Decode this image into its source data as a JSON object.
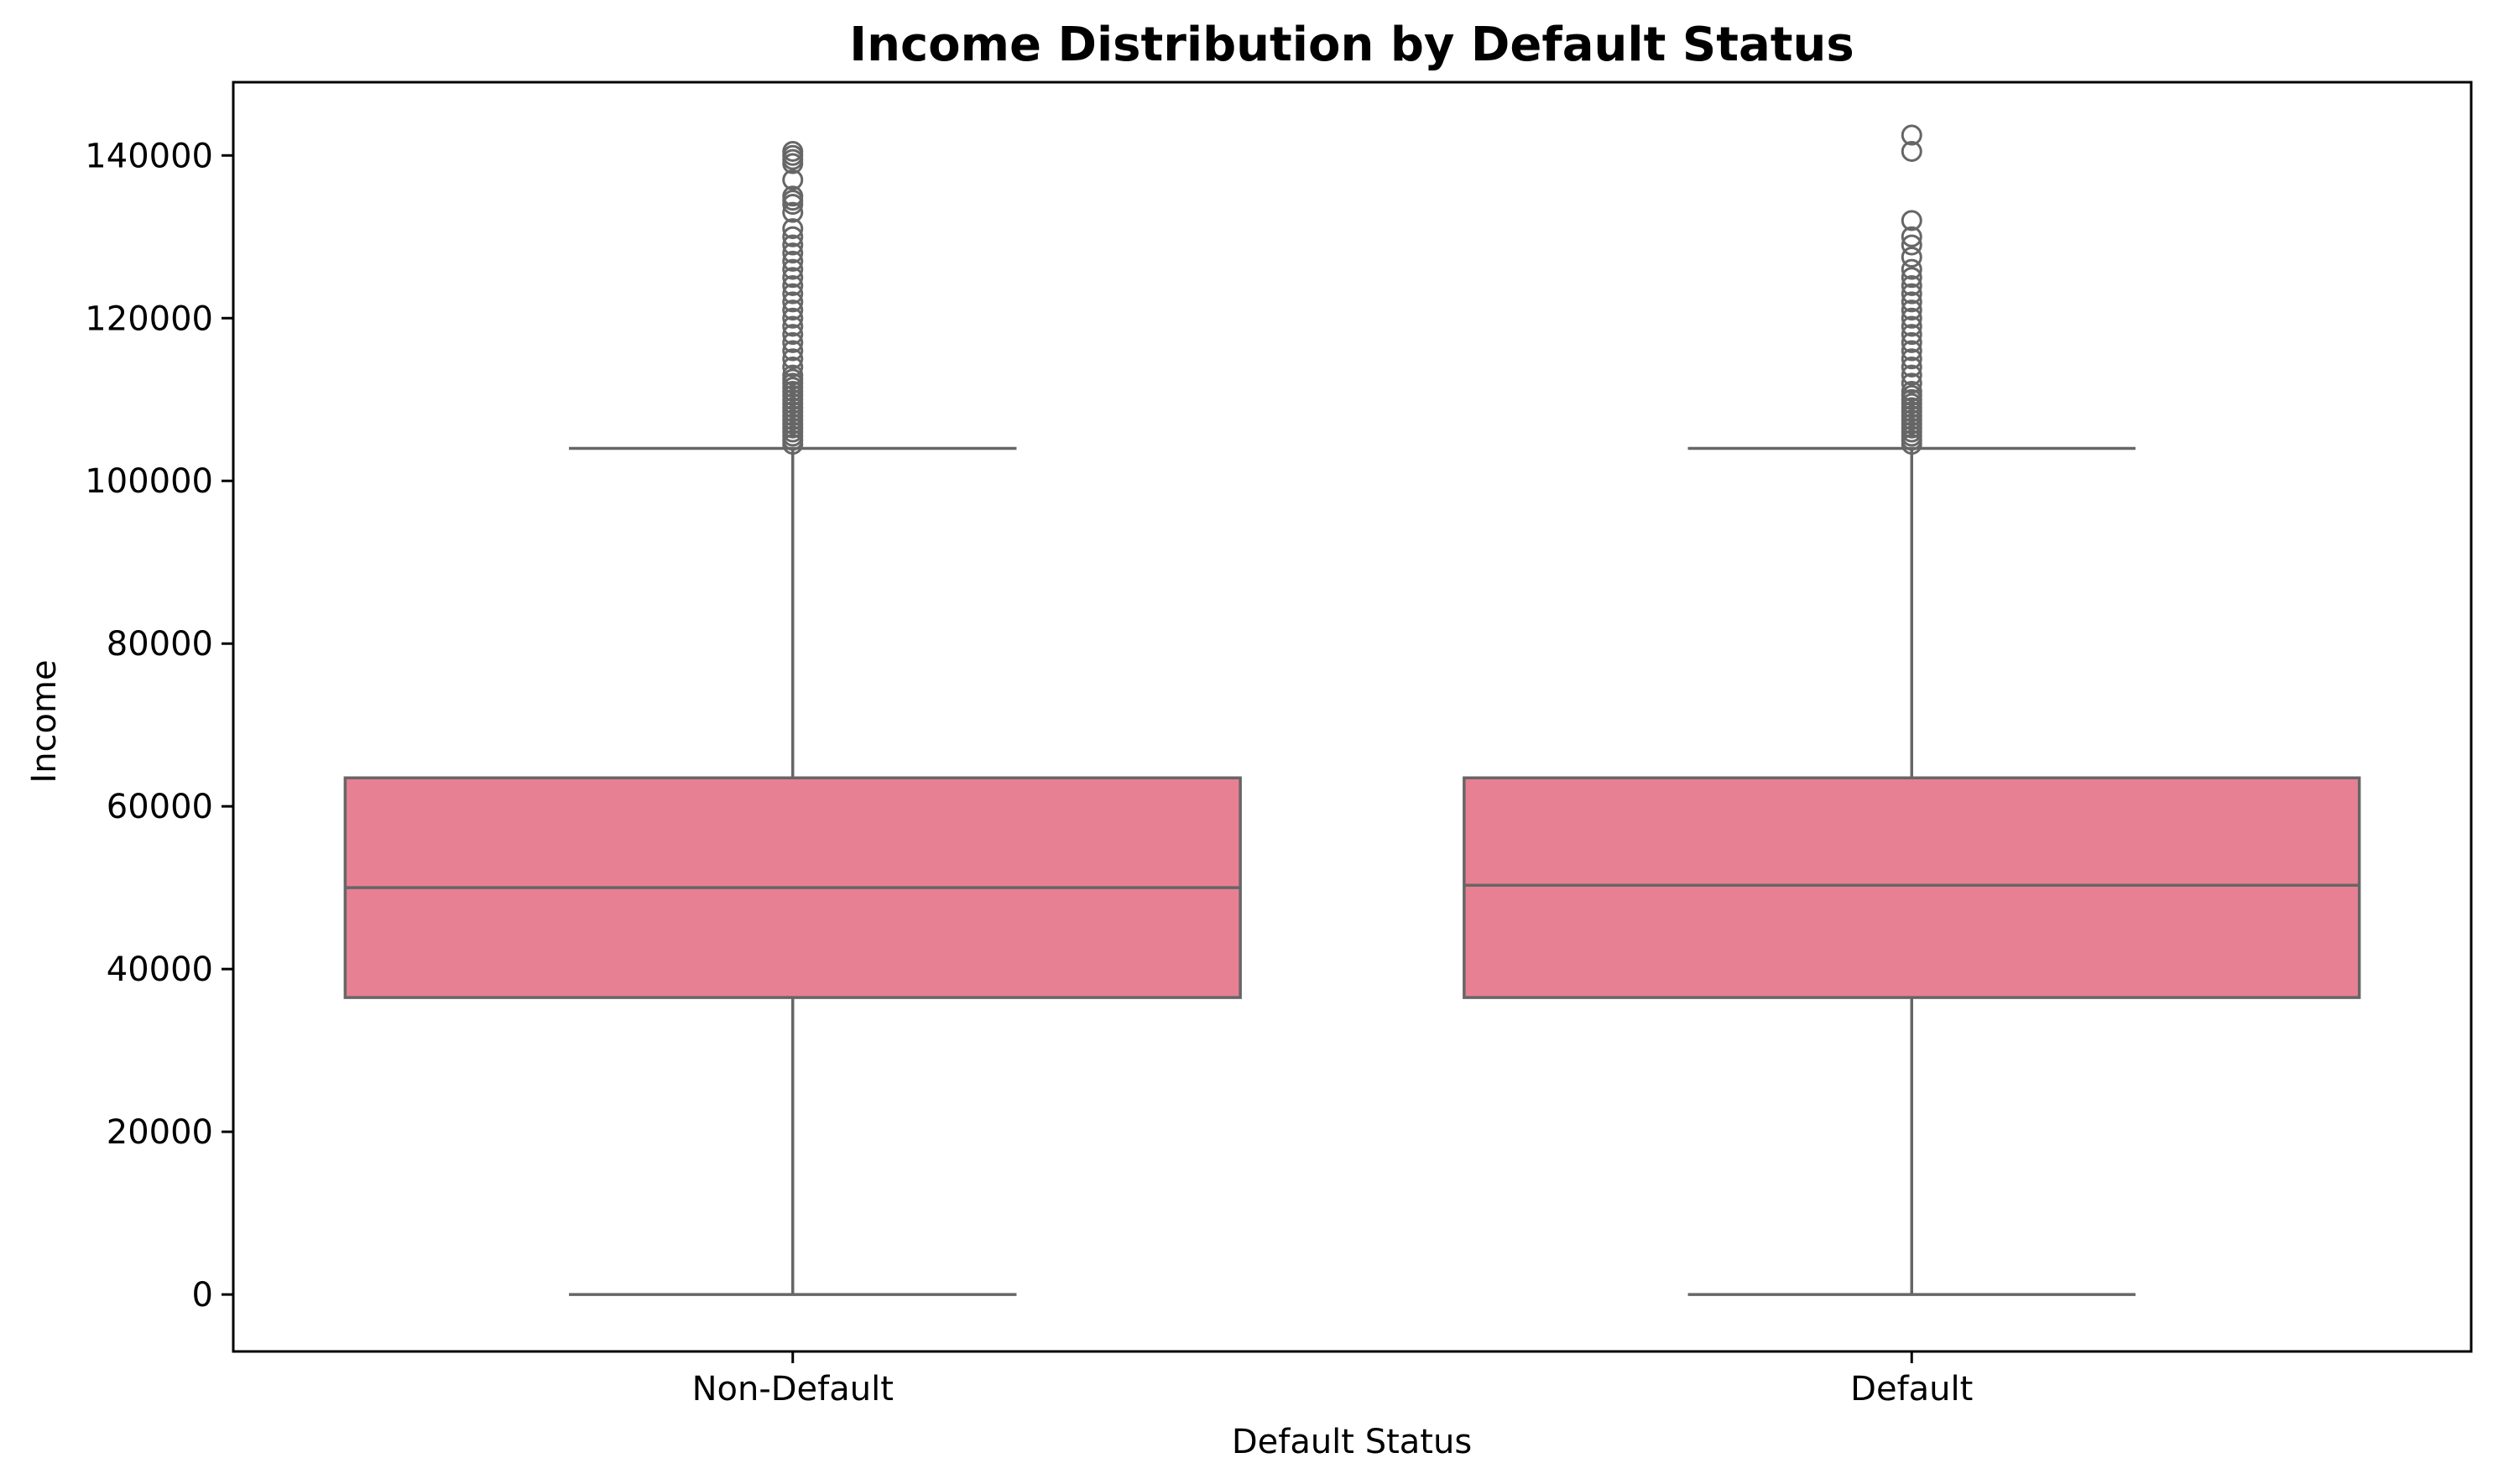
{
  "chart_data": {
    "type": "box",
    "title": "Income Distribution by Default Status",
    "xlabel": "Default Status",
    "ylabel": "Income",
    "ylim": [
      -7000,
      149000
    ],
    "yticks": [
      0,
      20000,
      40000,
      60000,
      80000,
      100000,
      120000,
      140000
    ],
    "ytick_labels": [
      "0",
      "20000",
      "40000",
      "60000",
      "80000",
      "100000",
      "120000",
      "140000"
    ],
    "categories": [
      "Non-Default",
      "Default"
    ],
    "grid": false,
    "box_color": "#e88093",
    "line_color": "#666666",
    "boxes": [
      {
        "category": "Non-Default",
        "whisker_low": 0,
        "q1": 36500,
        "median": 50000,
        "q3": 63500,
        "whisker_high": 104000,
        "outliers": [
          104500,
          105000,
          105500,
          106000,
          106500,
          107000,
          107500,
          108000,
          108500,
          109000,
          109500,
          110000,
          110500,
          111000,
          111500,
          112000,
          112500,
          113000,
          114000,
          115000,
          116000,
          117000,
          118000,
          119000,
          120000,
          121000,
          122000,
          123000,
          124000,
          125000,
          126000,
          127000,
          128000,
          129000,
          130000,
          131000,
          133000,
          134000,
          134500,
          135000,
          137000,
          139000,
          139500,
          140000,
          140500
        ]
      },
      {
        "category": "Default",
        "whisker_low": 0,
        "q1": 36500,
        "median": 50300,
        "q3": 63500,
        "whisker_high": 104000,
        "outliers": [
          104500,
          105000,
          105500,
          106000,
          106500,
          107000,
          107500,
          108000,
          108500,
          109000,
          109500,
          110000,
          110500,
          111000,
          112000,
          113000,
          114000,
          115000,
          116000,
          117000,
          118000,
          119000,
          120000,
          121000,
          122000,
          123000,
          124000,
          125000,
          126000,
          127500,
          129000,
          130000,
          132000,
          140500,
          142500
        ]
      }
    ]
  }
}
